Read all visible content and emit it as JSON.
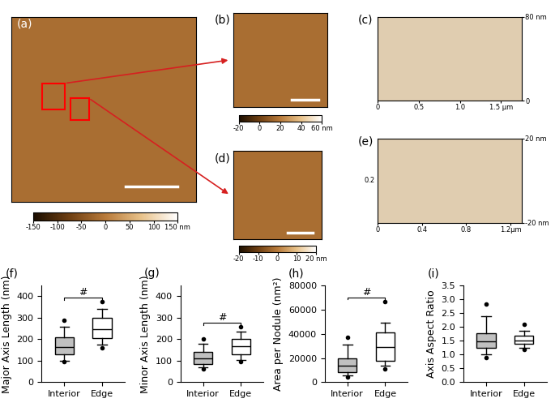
{
  "chart_data": [
    {
      "type": "image",
      "label": "(a)",
      "colorbar": {
        "lim": [
          -150,
          150
        ],
        "ticks": [
          -150,
          -100,
          -50,
          0,
          50,
          100,
          {
            "value": 150,
            "label": "150 nm"
          }
        ]
      }
    },
    {
      "type": "image",
      "label": "(b)",
      "colorbar": {
        "lim": [
          -20,
          60
        ],
        "ticks": [
          -20,
          0,
          20,
          40,
          {
            "value": 60,
            "label": "60 nm"
          }
        ]
      }
    },
    {
      "type": "surface",
      "label": "(c)",
      "xlim": [
        0,
        1.75
      ],
      "xticks": [
        0,
        0.5,
        1.0,
        {
          "value": 1.5,
          "label": "1.5 μm"
        }
      ],
      "ylim": [
        0,
        80
      ],
      "yticks": [
        0,
        {
          "value": 80,
          "label": "80 nm"
        }
      ]
    },
    {
      "type": "image",
      "label": "(d)",
      "colorbar": {
        "lim": [
          -20,
          20
        ],
        "ticks": [
          -20,
          -10,
          0,
          10,
          {
            "value": 20,
            "label": "20 nm"
          }
        ]
      }
    },
    {
      "type": "surface",
      "label": "(e)",
      "xlim": [
        0,
        1.3
      ],
      "xticks": [
        0,
        0.4,
        0.8,
        {
          "value": 1.2,
          "label": "1.2μm"
        }
      ],
      "ylim": [
        -20,
        20
      ],
      "yticks": [
        {
          "value": -20,
          "label": "-20 nm"
        },
        {
          "value": 20,
          "label": "20 nm"
        }
      ],
      "annotations": [
        "0.2"
      ]
    },
    {
      "type": "box",
      "label": "(f)",
      "y_label": "Major Axis Length (nm)",
      "categories": [
        "Interior",
        "Edge"
      ],
      "colors": [
        "#c0c0c0",
        "#ffffff"
      ],
      "stats": [
        {
          "whislo": 100,
          "q1": 130,
          "med": 162,
          "q3": 208,
          "whishi": 260,
          "fliers": [
            95,
            290
          ]
        },
        {
          "whislo": 175,
          "q1": 205,
          "med": 248,
          "q3": 300,
          "whishi": 340,
          "fliers": [
            160,
            375
          ]
        }
      ],
      "ylim": [
        0,
        450
      ],
      "yticks": [
        0,
        100,
        200,
        300,
        400
      ],
      "significance": "#"
    },
    {
      "type": "box",
      "label": "(g)",
      "y_label": "Minor Axis Length (nm)",
      "categories": [
        "Interior",
        "Edge"
      ],
      "colors": [
        "#c0c0c0",
        "#ffffff"
      ],
      "stats": [
        {
          "whislo": 70,
          "q1": 85,
          "med": 112,
          "q3": 140,
          "whishi": 178,
          "fliers": [
            60,
            200
          ]
        },
        {
          "whislo": 105,
          "q1": 128,
          "med": 168,
          "q3": 200,
          "whishi": 235,
          "fliers": [
            95,
            258
          ]
        }
      ],
      "ylim": [
        0,
        450
      ],
      "yticks": [
        0,
        100,
        200,
        300,
        400
      ],
      "significance": "#"
    },
    {
      "type": "box",
      "label": "(h)",
      "y_label": "Area per Nodule (nm²)",
      "categories": [
        "Interior",
        "Edge"
      ],
      "colors": [
        "#c0c0c0",
        "#ffffff"
      ],
      "stats": [
        {
          "whislo": 5500,
          "q1": 8500,
          "med": 14000,
          "q3": 20000,
          "whishi": 31000,
          "fliers": [
            4000,
            37000
          ]
        },
        {
          "whislo": 14000,
          "q1": 18000,
          "med": 29000,
          "q3": 41000,
          "whishi": 49000,
          "fliers": [
            11000,
            67000
          ]
        }
      ],
      "ylim": [
        0,
        80000
      ],
      "yticks": [
        0,
        20000,
        40000,
        60000,
        80000
      ],
      "significance": "#"
    },
    {
      "type": "box",
      "label": "(i)",
      "y_label": "Axis Aspect Ratio",
      "categories": [
        "Interior",
        "Edge"
      ],
      "colors": [
        "#c0c0c0",
        "#ffffff"
      ],
      "stats": [
        {
          "whislo": 1.0,
          "q1": 1.25,
          "med": 1.48,
          "q3": 1.78,
          "whishi": 2.4,
          "fliers": [
            0.88,
            2.82
          ]
        },
        {
          "whislo": 1.25,
          "q1": 1.38,
          "med": 1.5,
          "q3": 1.68,
          "whishi": 1.85,
          "fliers": [
            1.2,
            2.1
          ]
        }
      ],
      "ylim": [
        0.0,
        3.5
      ],
      "yticks": [
        0.0,
        0.5,
        1.0,
        1.5,
        2.0,
        2.5,
        3.0,
        3.5
      ]
    }
  ]
}
